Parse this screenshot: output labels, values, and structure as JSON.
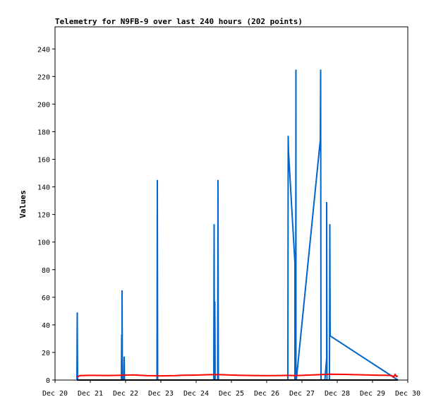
{
  "chart_data": {
    "type": "line",
    "title": "Telemetry for N9FB-9 over last 240 hours (202 points)",
    "xlabel": "",
    "ylabel": "Values",
    "x_tick_labels": [
      "Dec 20",
      "Dec 21",
      "Dec 22",
      "Dec 23",
      "Dec 24",
      "Dec 25",
      "Dec 26",
      "Dec 27",
      "Dec 28",
      "Dec 29",
      "Dec 30"
    ],
    "x_range_days": [
      20,
      30
    ],
    "y_ticks": [
      0,
      20,
      40,
      60,
      80,
      100,
      120,
      140,
      160,
      180,
      200,
      220,
      240
    ],
    "ylim": [
      0,
      256
    ],
    "grid": false,
    "legend": "none",
    "series": [
      {
        "color": "#0066cc",
        "points": [
          [
            20.62,
            0
          ],
          [
            20.63,
            49
          ],
          [
            20.64,
            0
          ],
          [
            21.88,
            0
          ],
          [
            21.89,
            33
          ],
          [
            21.9,
            0
          ],
          [
            21.9,
            65
          ],
          [
            21.91,
            0
          ],
          [
            21.95,
            0
          ],
          [
            21.96,
            17
          ],
          [
            21.97,
            0
          ],
          [
            22.89,
            0
          ],
          [
            22.9,
            145
          ],
          [
            22.91,
            0
          ],
          [
            24.5,
            0
          ],
          [
            24.51,
            113
          ],
          [
            24.52,
            0
          ],
          [
            24.53,
            57
          ],
          [
            24.54,
            0
          ],
          [
            24.61,
            0
          ],
          [
            24.62,
            145
          ],
          [
            24.63,
            0
          ],
          [
            26.6,
            0
          ],
          [
            26.61,
            177
          ],
          [
            26.62,
            165
          ],
          [
            26.8,
            85
          ],
          [
            26.8,
            0
          ],
          [
            26.82,
            0
          ],
          [
            26.83,
            225
          ],
          [
            26.83,
            10
          ],
          [
            26.84,
            0
          ],
          [
            27.52,
            174
          ],
          [
            27.53,
            225
          ],
          [
            27.54,
            0
          ],
          [
            27.65,
            0
          ],
          [
            27.7,
            16
          ],
          [
            27.7,
            129
          ],
          [
            27.71,
            0
          ],
          [
            27.78,
            0
          ],
          [
            27.79,
            113
          ],
          [
            27.8,
            32
          ],
          [
            29.72,
            0
          ]
        ]
      },
      {
        "color": "#ff0000",
        "points": [
          [
            20.62,
            2
          ],
          [
            20.7,
            3.2
          ],
          [
            21.0,
            3.4
          ],
          [
            21.5,
            3.3
          ],
          [
            21.9,
            3.5
          ],
          [
            22.0,
            3.6
          ],
          [
            22.2,
            3.7
          ],
          [
            22.6,
            3.2
          ],
          [
            22.8,
            3.1
          ],
          [
            23.0,
            3.0
          ],
          [
            23.4,
            3.2
          ],
          [
            23.6,
            3.5
          ],
          [
            24.0,
            3.6
          ],
          [
            24.4,
            3.9
          ],
          [
            24.6,
            4.0
          ],
          [
            24.8,
            3.8
          ],
          [
            25.2,
            3.5
          ],
          [
            25.6,
            3.3
          ],
          [
            26.0,
            3.2
          ],
          [
            26.4,
            3.3
          ],
          [
            26.6,
            3.4
          ],
          [
            26.8,
            3.2
          ],
          [
            27.0,
            3.4
          ],
          [
            27.3,
            3.7
          ],
          [
            27.5,
            3.9
          ],
          [
            27.8,
            4.2
          ],
          [
            28.2,
            4.1
          ],
          [
            28.5,
            3.9
          ],
          [
            28.8,
            3.7
          ],
          [
            29.2,
            3.5
          ],
          [
            29.4,
            3.5
          ],
          [
            29.55,
            3.2
          ],
          [
            29.6,
            2.3
          ],
          [
            29.64,
            4.0
          ],
          [
            29.68,
            2.5
          ],
          [
            29.72,
            3.0
          ]
        ]
      },
      {
        "color": "#000000",
        "points": [
          [
            20.62,
            0
          ],
          [
            29.72,
            0
          ]
        ]
      }
    ]
  }
}
